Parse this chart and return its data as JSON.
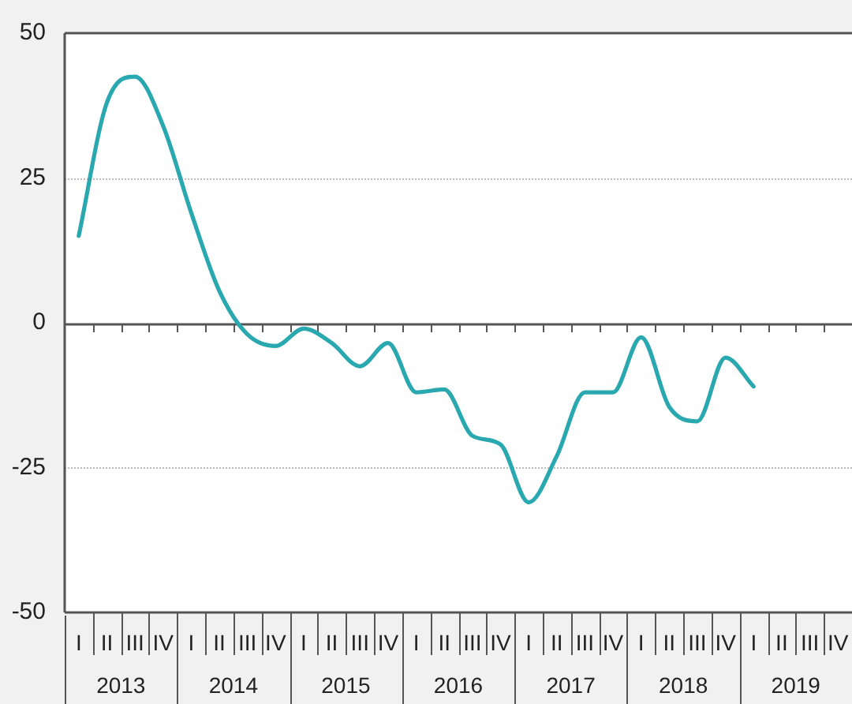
{
  "chart_data": {
    "type": "line",
    "categories": [
      "I",
      "II",
      "III",
      "IV",
      "I",
      "II",
      "III",
      "IV",
      "I",
      "II",
      "III",
      "IV",
      "I",
      "II",
      "III",
      "IV",
      "I",
      "II",
      "III",
      "IV",
      "I",
      "II",
      "III",
      "IV",
      "I",
      "II",
      "III",
      "IV"
    ],
    "series": [
      {
        "color": "#2aa8b0",
        "values": [
          15,
          38,
          42.5,
          34,
          19,
          5.5,
          -2,
          -4,
          -1,
          -3.5,
          -7.5,
          -3.5,
          -12,
          -11.5,
          -19.5,
          -21,
          -31,
          -23,
          -12,
          -12,
          -2.5,
          -14.5,
          -17,
          -6,
          -11,
          null,
          null,
          null
        ]
      }
    ],
    "annotations": [
      "2013",
      "2014",
      "2015",
      "2016",
      "2017",
      "2018",
      "2019"
    ],
    "ylim": [
      -50,
      50
    ],
    "yticks": [
      -50,
      -25,
      0,
      25,
      50
    ],
    "grid": "y",
    "legend": false,
    "marker": "none",
    "line_style": "solid"
  }
}
